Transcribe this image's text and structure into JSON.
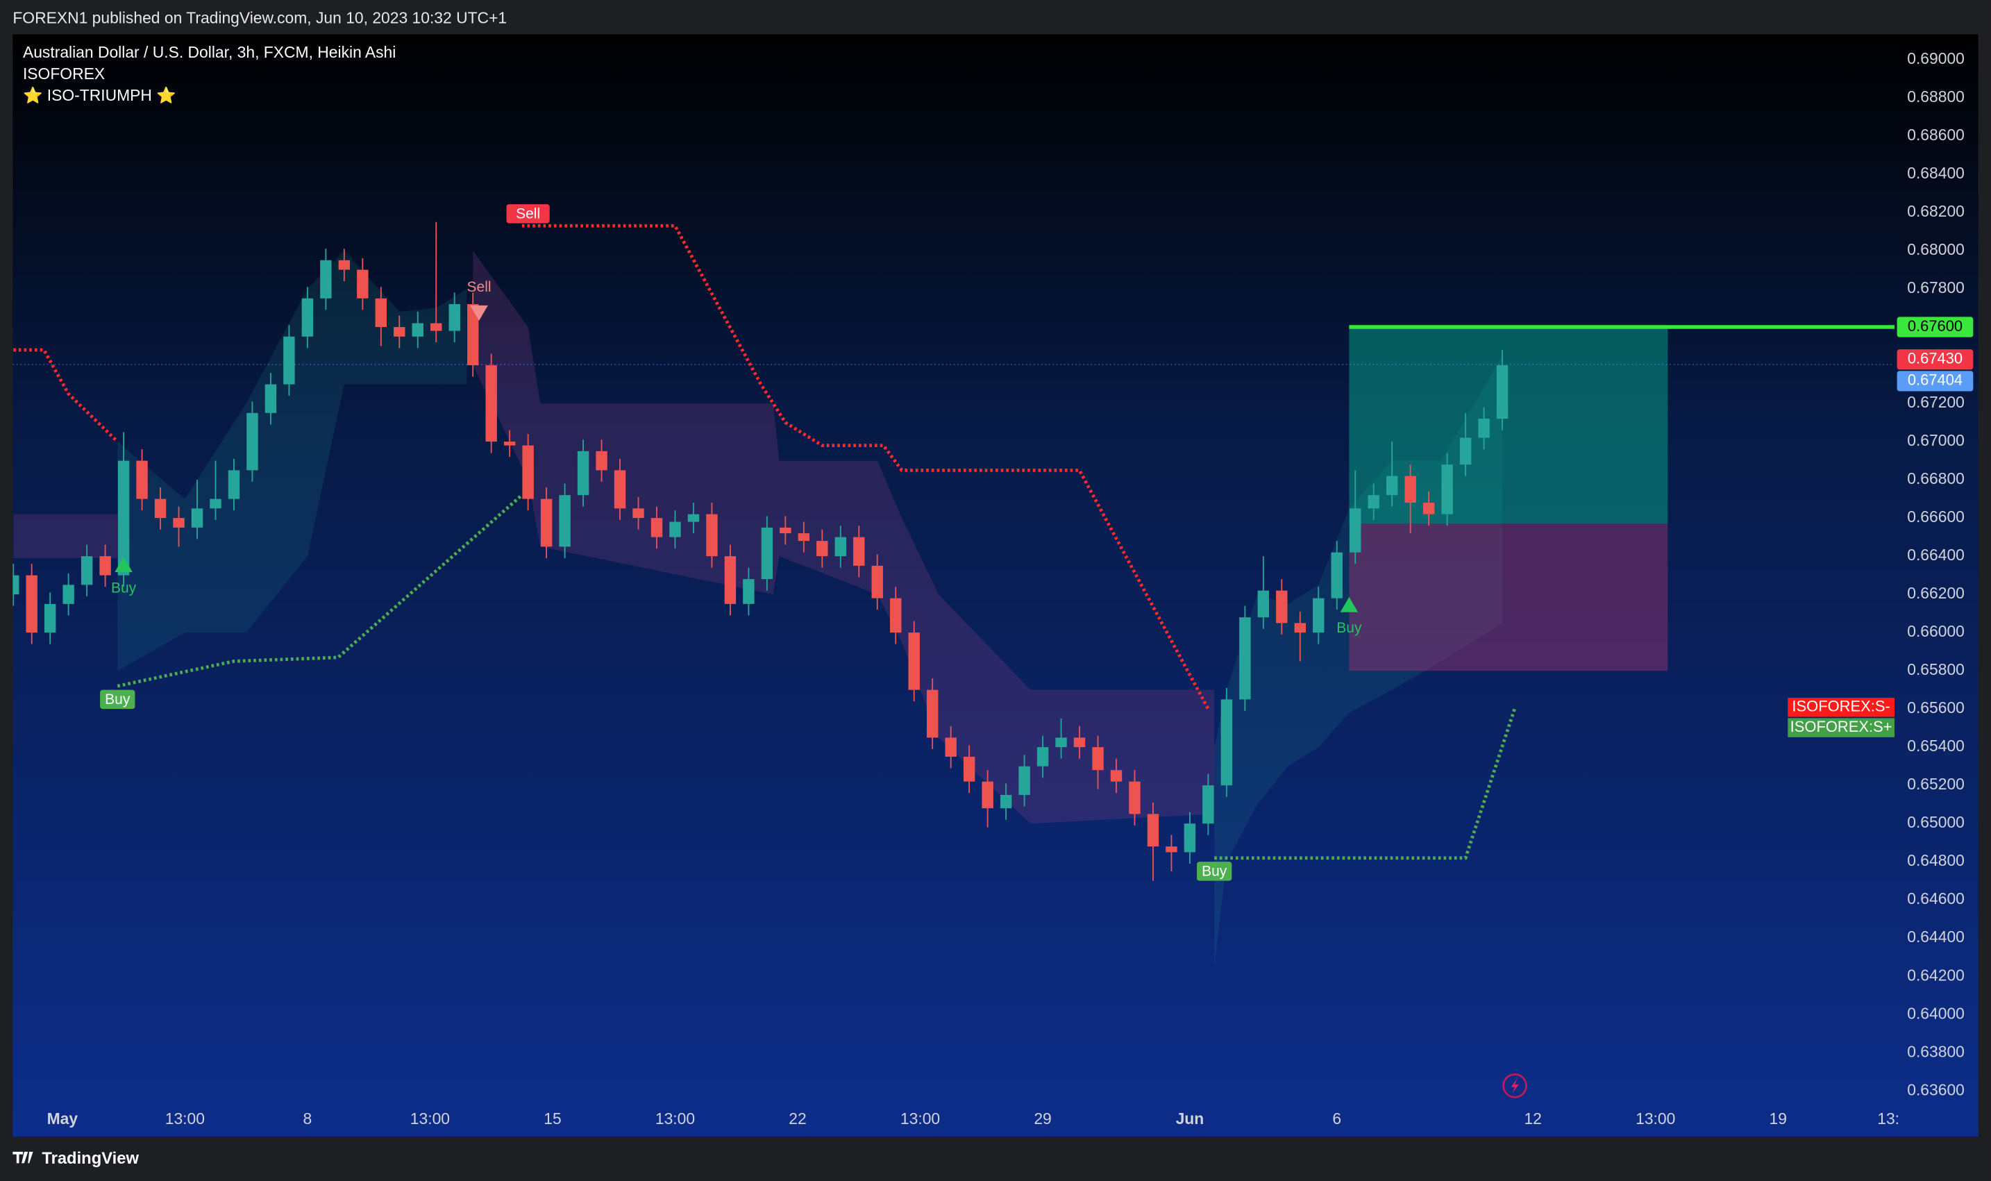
{
  "header": {
    "published": "FOREXN1 published on TradingView.com, Jun 10, 2023 10:32 UTC+1"
  },
  "footer": {
    "brand": "TradingView"
  },
  "chart_data": {
    "type": "candlestick",
    "title": "Australian Dollar / U.S. Dollar, 3h, FXCM, Heikin Ashi",
    "subtitle": "ISOFOREX",
    "indicator": "⭐ ISO-TRIUMPH ⭐",
    "up_color": "#26a69a",
    "down_color": "#ef5350",
    "grid": false,
    "xlim": [
      -8.1,
      299
    ],
    "ylim": [
      0.63514,
      0.69133
    ],
    "xticks": [
      {
        "value": 0,
        "label": "May"
      },
      {
        "value": 20,
        "label": "13:00"
      },
      {
        "value": 40,
        "label": "8"
      },
      {
        "value": 60,
        "label": "13:00"
      },
      {
        "value": 80,
        "label": "15"
      },
      {
        "value": 100,
        "label": "13:00"
      },
      {
        "value": 120,
        "label": "22"
      },
      {
        "value": 140,
        "label": "13:00"
      },
      {
        "value": 160,
        "label": "29"
      },
      {
        "value": 184,
        "label": "Jun"
      },
      {
        "value": 208,
        "label": "6"
      },
      {
        "value": 240,
        "label": "12"
      },
      {
        "value": 260,
        "label": "13:00"
      },
      {
        "value": 280,
        "label": "19"
      },
      {
        "value": 298,
        "label": "13:"
      }
    ],
    "yticks": [
      {
        "value": 0.636,
        "label": "0.63600"
      },
      {
        "value": 0.638,
        "label": "0.63800"
      },
      {
        "value": 0.64,
        "label": "0.64000"
      },
      {
        "value": 0.642,
        "label": "0.64200"
      },
      {
        "value": 0.644,
        "label": "0.64400"
      },
      {
        "value": 0.646,
        "label": "0.64600"
      },
      {
        "value": 0.648,
        "label": "0.64800"
      },
      {
        "value": 0.65,
        "label": "0.65000"
      },
      {
        "value": 0.652,
        "label": "0.65200"
      },
      {
        "value": 0.654,
        "label": "0.65400"
      },
      {
        "value": 0.656,
        "label": "0.65600"
      },
      {
        "value": 0.658,
        "label": "0.65800"
      },
      {
        "value": 0.66,
        "label": "0.66000"
      },
      {
        "value": 0.662,
        "label": "0.66200"
      },
      {
        "value": 0.664,
        "label": "0.66400"
      },
      {
        "value": 0.666,
        "label": "0.66600"
      },
      {
        "value": 0.668,
        "label": "0.66800"
      },
      {
        "value": 0.67,
        "label": "0.67000"
      },
      {
        "value": 0.672,
        "label": "0.67200"
      },
      {
        "value": 0.674,
        "label": "0.67400"
      },
      {
        "value": 0.676,
        "label": "0.67600"
      },
      {
        "value": 0.678,
        "label": "0.67800"
      },
      {
        "value": 0.68,
        "label": "0.68000"
      },
      {
        "value": 0.682,
        "label": "0.68200"
      },
      {
        "value": 0.684,
        "label": "0.68400"
      },
      {
        "value": 0.686,
        "label": "0.68600"
      },
      {
        "value": 0.688,
        "label": "0.68800"
      },
      {
        "value": 0.69,
        "label": "0.69000"
      }
    ],
    "x": [
      -8,
      -5,
      -2,
      1,
      4,
      7,
      10,
      13,
      16,
      19,
      22,
      25,
      28,
      31,
      34,
      37,
      40,
      43,
      46,
      49,
      52,
      55,
      58,
      61,
      64,
      67,
      70,
      73,
      76,
      79,
      82,
      85,
      88,
      91,
      94,
      97,
      100,
      103,
      106,
      109,
      112,
      115,
      118,
      121,
      124,
      127,
      130,
      133,
      136,
      139,
      142,
      145,
      148,
      151,
      154,
      157,
      160,
      163,
      166,
      169,
      172,
      175,
      178,
      181,
      184,
      187,
      190,
      193,
      196,
      199,
      202,
      205,
      208,
      211,
      214,
      217,
      220,
      223,
      226,
      229,
      232,
      235
    ],
    "open": [
      0.662,
      0.663,
      0.66,
      0.6615,
      0.6625,
      0.664,
      0.663,
      0.669,
      0.667,
      0.666,
      0.6655,
      0.6665,
      0.667,
      0.6685,
      0.6715,
      0.673,
      0.6755,
      0.6775,
      0.6795,
      0.679,
      0.6775,
      0.676,
      0.6755,
      0.6762,
      0.6758,
      0.6772,
      0.674,
      0.67,
      0.6698,
      0.667,
      0.6645,
      0.6672,
      0.6695,
      0.6685,
      0.6665,
      0.666,
      0.665,
      0.6658,
      0.6662,
      0.664,
      0.6615,
      0.6628,
      0.6655,
      0.6652,
      0.6648,
      0.664,
      0.665,
      0.6635,
      0.6618,
      0.66,
      0.657,
      0.6545,
      0.6535,
      0.6522,
      0.6508,
      0.6515,
      0.653,
      0.654,
      0.6545,
      0.654,
      0.6528,
      0.6522,
      0.6505,
      0.6488,
      0.6485,
      0.65,
      0.652,
      0.6565,
      0.6608,
      0.6622,
      0.6605,
      0.66,
      0.6618,
      0.6642,
      0.6665,
      0.6672,
      0.6682,
      0.6668,
      0.6662,
      0.6688,
      0.6702,
      0.6712
    ],
    "high": [
      0.6636,
      0.6636,
      0.6621,
      0.6631,
      0.6646,
      0.6646,
      0.6705,
      0.6696,
      0.6676,
      0.6666,
      0.668,
      0.669,
      0.6691,
      0.6721,
      0.6736,
      0.6761,
      0.6781,
      0.6801,
      0.6801,
      0.6796,
      0.6781,
      0.6766,
      0.6768,
      0.6815,
      0.6778,
      0.6778,
      0.6746,
      0.6706,
      0.6704,
      0.6676,
      0.6678,
      0.6701,
      0.6701,
      0.6691,
      0.6671,
      0.6666,
      0.6664,
      0.6668,
      0.6668,
      0.6646,
      0.6634,
      0.6661,
      0.6661,
      0.6658,
      0.6654,
      0.6656,
      0.6656,
      0.6641,
      0.6624,
      0.6606,
      0.6576,
      0.6551,
      0.6541,
      0.6528,
      0.6521,
      0.6536,
      0.6546,
      0.6555,
      0.6551,
      0.6546,
      0.6534,
      0.6528,
      0.6511,
      0.6494,
      0.6506,
      0.6526,
      0.6571,
      0.6614,
      0.664,
      0.6628,
      0.6611,
      0.6624,
      0.6648,
      0.6685,
      0.6678,
      0.67,
      0.6688,
      0.6674,
      0.6694,
      0.6715,
      0.6718,
      0.6748
    ],
    "low": [
      0.6614,
      0.6594,
      0.6594,
      0.6609,
      0.6619,
      0.6624,
      0.6624,
      0.6664,
      0.6654,
      0.6645,
      0.6649,
      0.6659,
      0.6664,
      0.6679,
      0.6709,
      0.6724,
      0.6749,
      0.6769,
      0.6784,
      0.6769,
      0.675,
      0.6749,
      0.6749,
      0.6752,
      0.6752,
      0.6734,
      0.6694,
      0.6692,
      0.6664,
      0.6639,
      0.6639,
      0.6666,
      0.6679,
      0.6659,
      0.6654,
      0.6644,
      0.6644,
      0.6652,
      0.6634,
      0.6609,
      0.6609,
      0.6622,
      0.6646,
      0.6642,
      0.6634,
      0.6634,
      0.6629,
      0.6612,
      0.6594,
      0.6564,
      0.6539,
      0.6529,
      0.6516,
      0.6498,
      0.6502,
      0.6509,
      0.6524,
      0.6534,
      0.6534,
      0.6518,
      0.6516,
      0.6499,
      0.647,
      0.6475,
      0.6479,
      0.6494,
      0.6514,
      0.6559,
      0.6602,
      0.6599,
      0.6585,
      0.6594,
      0.6612,
      0.6636,
      0.6659,
      0.6666,
      0.6652,
      0.6656,
      0.6656,
      0.6682,
      0.6696,
      0.6706
    ],
    "close": [
      0.663,
      0.66,
      0.6615,
      0.6625,
      0.664,
      0.663,
      0.669,
      0.667,
      0.666,
      0.6655,
      0.6665,
      0.667,
      0.6685,
      0.6715,
      0.673,
      0.6755,
      0.6775,
      0.6795,
      0.679,
      0.6775,
      0.676,
      0.6755,
      0.6762,
      0.6758,
      0.6772,
      0.674,
      0.67,
      0.6698,
      0.667,
      0.6645,
      0.6672,
      0.6695,
      0.6685,
      0.6665,
      0.666,
      0.665,
      0.6658,
      0.6662,
      0.664,
      0.6615,
      0.6628,
      0.6655,
      0.6652,
      0.6648,
      0.664,
      0.665,
      0.6635,
      0.6618,
      0.66,
      0.657,
      0.6545,
      0.6535,
      0.6522,
      0.6508,
      0.6515,
      0.653,
      0.654,
      0.6545,
      0.654,
      0.6528,
      0.6522,
      0.6505,
      0.6488,
      0.6485,
      0.65,
      0.652,
      0.6565,
      0.6608,
      0.6622,
      0.6605,
      0.66,
      0.6618,
      0.6642,
      0.6665,
      0.6672,
      0.6682,
      0.6668,
      0.6662,
      0.6688,
      0.6702,
      0.6712,
      0.674
    ],
    "clouds": [
      {
        "color": "rgba(130,60,130,0.28)",
        "x": [
          -8,
          9
        ],
        "upper": [
          0.6662,
          0.6662
        ],
        "lower": [
          0.6639,
          0.6639
        ]
      },
      {
        "color": "rgba(38,166,154,0.14)",
        "x": [
          9,
          20,
          30,
          40,
          46,
          55,
          61,
          66
        ],
        "upper": [
          0.67,
          0.667,
          0.672,
          0.678,
          0.68,
          0.6768,
          0.677,
          0.678
        ],
        "lower": [
          0.658,
          0.66,
          0.66,
          0.664,
          0.673,
          0.673,
          0.673,
          0.673
        ]
      },
      {
        "color": "rgba(130,60,130,0.28)",
        "x": [
          67,
          76,
          78,
          116,
          117,
          133,
          137,
          143,
          158,
          188
        ],
        "upper": [
          0.68,
          0.676,
          0.672,
          0.672,
          0.669,
          0.669,
          0.666,
          0.662,
          0.657,
          0.657
        ],
        "lower": [
          0.674,
          0.668,
          0.6645,
          0.662,
          0.664,
          0.662,
          0.6595,
          0.6545,
          0.65,
          0.6505
        ]
      },
      {
        "color": "rgba(38,166,154,0.14)",
        "x": [
          188,
          190,
          195,
          200,
          205,
          210,
          217,
          225,
          235
        ],
        "upper": [
          0.654,
          0.657,
          0.662,
          0.6615,
          0.6625,
          0.6665,
          0.669,
          0.669,
          0.6745
        ],
        "lower": [
          0.6425,
          0.648,
          0.651,
          0.653,
          0.654,
          0.6558,
          0.657,
          0.6585,
          0.6605
        ]
      }
    ],
    "stop_lines": [
      {
        "color": "#ff2a2a",
        "x": [
          -8,
          -3,
          1,
          9
        ],
        "values": [
          0.6748,
          0.6748,
          0.6725,
          0.67
        ]
      },
      {
        "color": "#ff2a2a",
        "x": [
          75,
          100,
          114,
          118,
          124,
          134,
          137,
          166,
          187
        ],
        "values": [
          0.6813,
          0.6813,
          0.673,
          0.671,
          0.6698,
          0.6698,
          0.6685,
          0.6685,
          0.656
        ]
      },
      {
        "color": "#4caf50",
        "x": [
          9,
          28,
          45,
          75
        ],
        "values": [
          0.6572,
          0.6585,
          0.6587,
          0.6672
        ]
      },
      {
        "color": "#4caf50",
        "x": [
          188,
          229,
          237
        ],
        "values": [
          0.6482,
          0.6482,
          0.656
        ]
      }
    ],
    "signals": [
      {
        "label": "Buy",
        "x": 10,
        "price": 0.6635,
        "direction": "up",
        "color": "#22c55e"
      },
      {
        "label": "Sell",
        "x": 68,
        "price": 0.6768,
        "direction": "down",
        "color": "#f28b8b"
      },
      {
        "label": "Buy",
        "x": 210,
        "price": 0.6614,
        "direction": "up",
        "color": "#22c55e"
      }
    ],
    "stop_labels": [
      {
        "label": "Buy",
        "x": 9,
        "price": 0.6572,
        "color": "#4caf50"
      },
      {
        "label": "Sell",
        "x": 76,
        "price": 0.6813,
        "color": "#f23645"
      },
      {
        "label": "Buy",
        "x": 188,
        "price": 0.6482,
        "color": "#4caf50"
      }
    ],
    "position": {
      "x_start": 210,
      "x_end": 262,
      "target": 0.676,
      "entry": 0.6657,
      "stop": 0.658
    },
    "current_price": 0.67404,
    "price_labels": [
      {
        "value": 0.676,
        "label": "0.67600",
        "color": "#39e83a"
      },
      {
        "value": 0.6743,
        "label": "0.67430",
        "color": "#f23645"
      },
      {
        "value": 0.67404,
        "color": "#5b9cf6"
      }
    ],
    "indicator_labels": [
      {
        "text": "ISOFOREX:S-",
        "color": "#ff1a1a"
      },
      {
        "text": "ISOFOREX:S+",
        "color": "#43a047"
      }
    ]
  }
}
